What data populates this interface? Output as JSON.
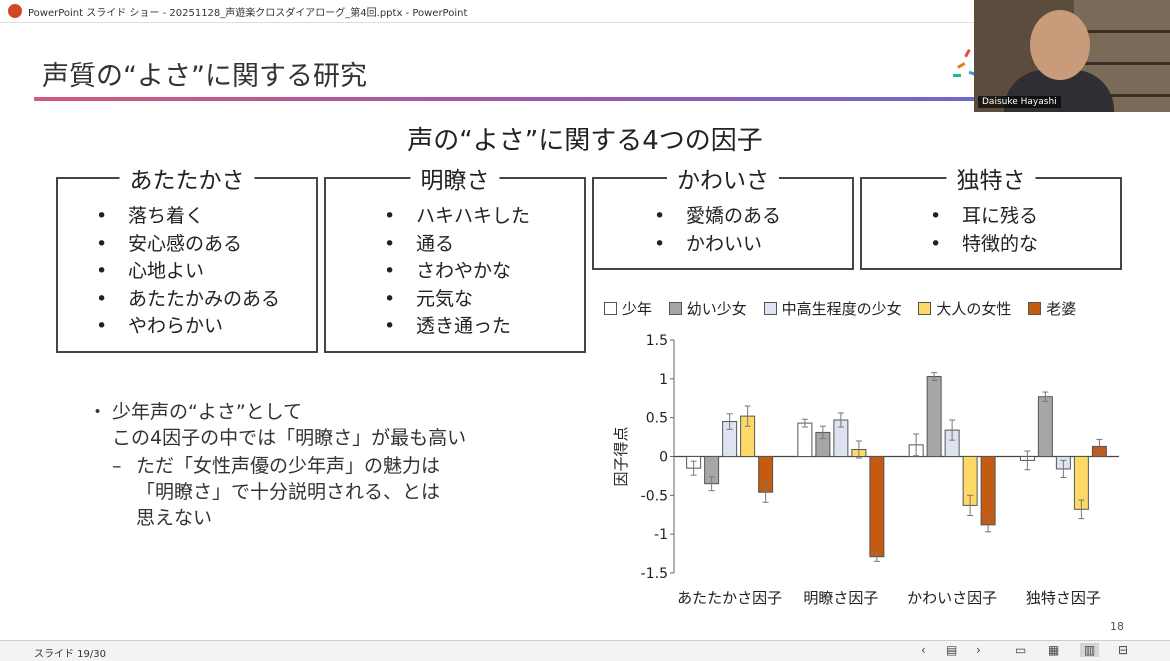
{
  "window": {
    "title": "PowerPoint スライド ショー  -  20251128_声遊楽クロスダイアローグ_第4回.pptx - PowerPoint"
  },
  "slide": {
    "title": "声質の“よさ”に関する研究",
    "heading": "声の“よさ”に関する4つの因子",
    "page_number": "18",
    "boxes": [
      {
        "title": "あたたかさ",
        "items": [
          "落ち着く",
          "安心感のある",
          "心地よい",
          "あたたかみのある",
          "やわらかい"
        ]
      },
      {
        "title": "明瞭さ",
        "items": [
          "ハキハキした",
          "通る",
          "さわやかな",
          "元気な",
          "透き通った"
        ]
      },
      {
        "title": "かわいさ",
        "items": [
          "愛嬌のある",
          "かわいい"
        ]
      },
      {
        "title": "独特さ",
        "items": [
          "耳に残る",
          "特徴的な"
        ]
      }
    ],
    "notes": {
      "line1": "少年声の“よさ”として",
      "line2": "この4因子の中では「明瞭さ」が最も高い",
      "sub_dash": "–",
      "sub1": "ただ「女性声優の少年声」の魅力は",
      "sub2": "「明瞭さ」で十分説明される、とは",
      "sub3": "思えない"
    }
  },
  "chart_data": {
    "type": "bar",
    "categories": [
      "あたたかさ因子",
      "明瞭さ因子",
      "かわいさ因子",
      "独特さ因子"
    ],
    "series": [
      {
        "name": "少年",
        "color": "#ffffff",
        "values": [
          -0.15,
          0.43,
          0.15,
          -0.05
        ]
      },
      {
        "name": "幼い少女",
        "color": "#a6a6a6",
        "values": [
          -0.35,
          0.31,
          1.03,
          0.77
        ]
      },
      {
        "name": "中高生程度の少女",
        "color": "#dde3f0",
        "values": [
          0.45,
          0.47,
          0.34,
          -0.16
        ]
      },
      {
        "name": "大人の女性",
        "color": "#ffd966",
        "values": [
          0.52,
          0.09,
          -0.63,
          -0.68
        ]
      },
      {
        "name": "老婆",
        "color": "#c55a11",
        "values": [
          -0.46,
          -1.29,
          -0.88,
          0.13
        ]
      }
    ],
    "errors": [
      [
        0.09,
        0.05,
        0.14,
        0.12
      ],
      [
        0.09,
        0.08,
        0.05,
        0.06
      ],
      [
        0.1,
        0.09,
        0.13,
        0.11
      ],
      [
        0.13,
        0.11,
        0.13,
        0.12
      ],
      [
        0.13,
        0.06,
        0.09,
        0.09
      ]
    ],
    "ylabel": "因子得点",
    "ylim": [
      -1.5,
      1.5
    ],
    "yticks": [
      "1.5",
      "1",
      "0.5",
      "0",
      "-0.5",
      "-1",
      "-1.5"
    ],
    "legend_position": "top"
  },
  "camera": {
    "name": "Daisuke Hayashi"
  },
  "statusbar": {
    "slide_label": "スライド 19/30",
    "prev_icon": "chevron-left-icon",
    "next_icon": "chevron-right-icon",
    "prev": "‹",
    "grid": "▤",
    "next": "›",
    "view1": "▭",
    "view2": "▦",
    "view3": "▥",
    "view4": "⊟"
  }
}
